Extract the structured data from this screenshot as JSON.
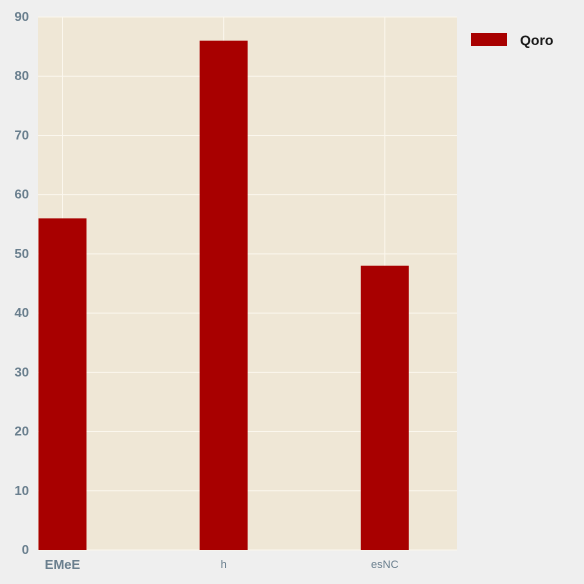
{
  "chart_data": {
    "type": "bar",
    "categories": [
      "EMeE",
      "h",
      "esNC"
    ],
    "series": [
      {
        "name": "Qoro",
        "values": [
          56,
          86,
          48
        ],
        "color": "#a80000"
      }
    ],
    "title": "",
    "xlabel": "",
    "ylabel": "",
    "ylim": [
      0,
      90
    ],
    "yticks": [
      0,
      10,
      20,
      30,
      40,
      50,
      60,
      70,
      80,
      90
    ],
    "grid": true,
    "legend_position": "top-right",
    "colors": {
      "plot_background": "#efe7d6",
      "page_background": "#efefef",
      "grid": "#fbf7ee",
      "tick_label": "#6a7f8e"
    }
  }
}
